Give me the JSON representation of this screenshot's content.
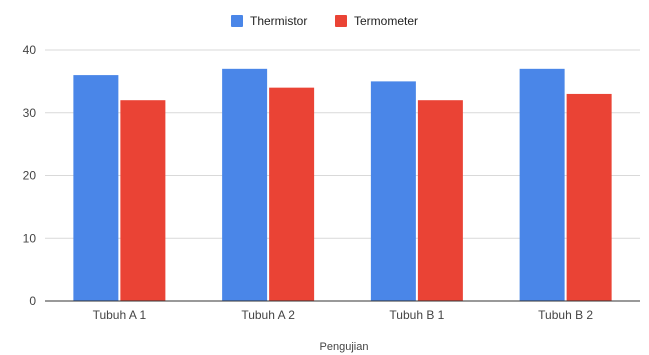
{
  "chart_data": {
    "type": "bar",
    "title": "",
    "xlabel": "Pengujian",
    "ylabel": "",
    "categories": [
      "Tubuh A 1",
      "Tubuh A 2",
      "Tubuh B 1",
      "Tubuh B 2"
    ],
    "series": [
      {
        "name": "Thermistor",
        "color": "#4a86e8",
        "values": [
          36,
          37,
          35,
          37
        ]
      },
      {
        "name": "Termometer",
        "color": "#ea4335",
        "values": [
          32,
          34,
          32,
          33
        ]
      }
    ],
    "ylim": [
      0,
      40
    ],
    "yticks": [
      "0",
      "10",
      "20",
      "30",
      "40"
    ],
    "grid": true,
    "legend_position": "top-center"
  }
}
